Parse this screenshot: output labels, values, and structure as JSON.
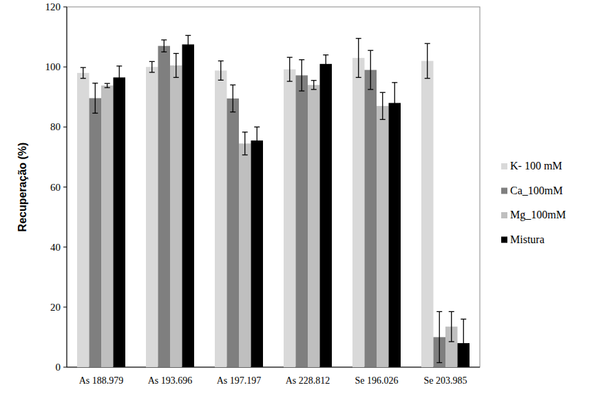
{
  "chart_data": {
    "type": "bar",
    "y_label": "Recuperação  (%)",
    "categories": [
      "As 188.979",
      "As 193.696",
      "As 197.197",
      "As 228.812",
      "Se 196.026",
      "Se 203.985"
    ],
    "series": [
      {
        "name": "K- 100 mM",
        "color": "#d9d9d9",
        "values": [
          98,
          100,
          98.8,
          99.2,
          103,
          102
        ],
        "errors": [
          1.8,
          1.8,
          3.2,
          4,
          6.5,
          5.8
        ]
      },
      {
        "name": "Ca_100mM",
        "color": "#7f7f7f",
        "values": [
          89.6,
          107,
          89.5,
          97.2,
          99,
          10
        ],
        "errors": [
          5,
          2,
          4.5,
          5.2,
          6.5,
          8.5
        ]
      },
      {
        "name": "Mg_100mM",
        "color": "#bfbfbf",
        "values": [
          93.8,
          100.5,
          74.5,
          94,
          87,
          13.5
        ],
        "errors": [
          0.7,
          4,
          3.8,
          1.5,
          4.5,
          5
        ]
      },
      {
        "name": "Mistura",
        "color": "#000000",
        "values": [
          96.5,
          107.5,
          75.5,
          101,
          88,
          8
        ],
        "errors": [
          3.8,
          3,
          4.5,
          3,
          6.8,
          8
        ]
      }
    ],
    "ylim": [
      0,
      120
    ],
    "yticks": [
      0,
      20,
      40,
      60,
      80,
      100,
      120
    ],
    "grid": false,
    "legend": "right"
  }
}
